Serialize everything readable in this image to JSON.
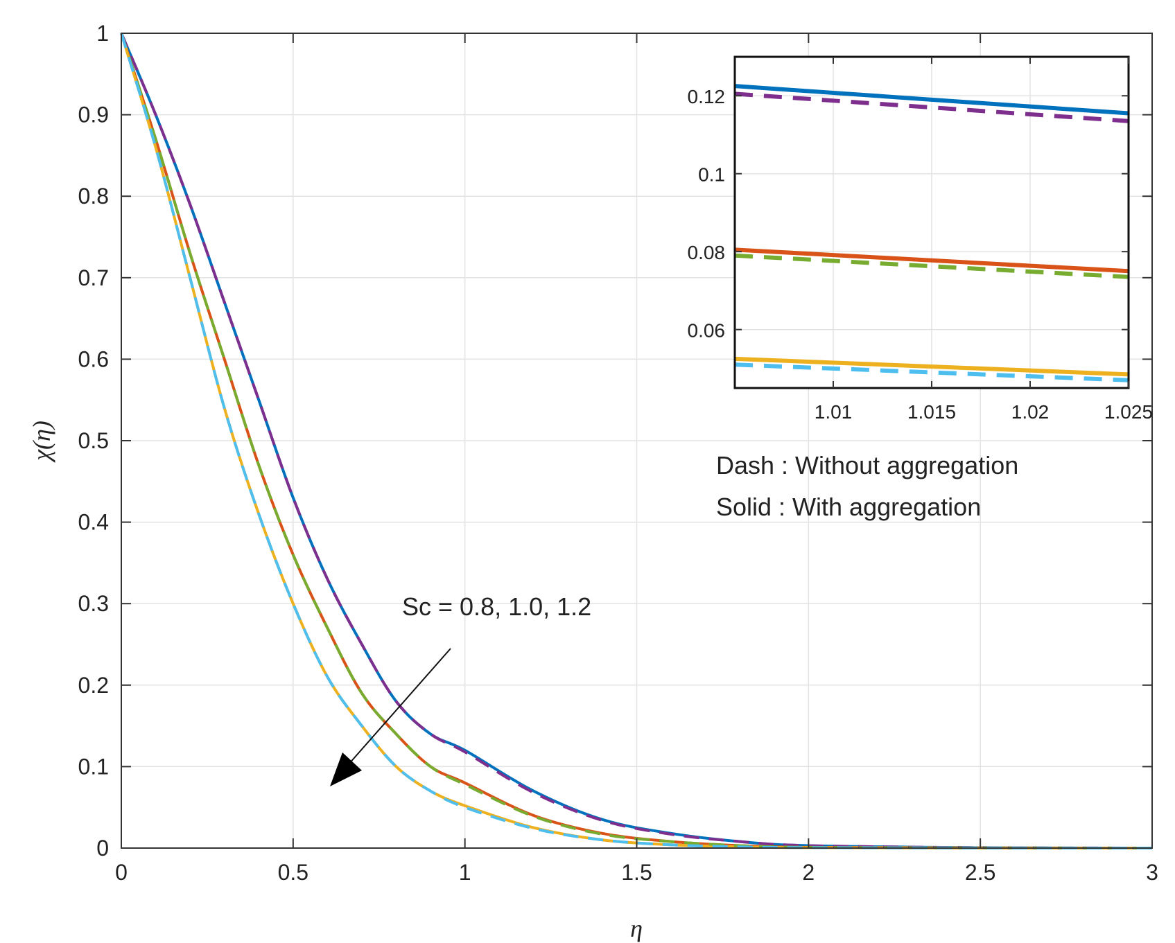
{
  "chart_data": {
    "type": "line",
    "xlabel": "η",
    "ylabel": "χ(η)",
    "xlim": [
      0,
      3
    ],
    "ylim": [
      0,
      1
    ],
    "grid": true,
    "x_ticks": [
      "0",
      "0.5",
      "1",
      "1.5",
      "2",
      "2.5",
      "3"
    ],
    "y_ticks": [
      "0",
      "0.1",
      "0.2",
      "0.3",
      "0.4",
      "0.5",
      "0.6",
      "0.7",
      "0.8",
      "0.9",
      "1"
    ],
    "series": [
      {
        "name": "Sc = 0.8, with aggregation",
        "color": "#0072BD",
        "style": "solid",
        "x": [
          0,
          0.1,
          0.2,
          0.3,
          0.4,
          0.5,
          0.6,
          0.7,
          0.8,
          0.9,
          1.0,
          1.2,
          1.4,
          1.6,
          1.8,
          2.0,
          2.5,
          3.0
        ],
        "y": [
          1.0,
          0.9,
          0.79,
          0.67,
          0.55,
          0.43,
          0.33,
          0.25,
          0.18,
          0.14,
          0.12,
          0.07,
          0.035,
          0.018,
          0.008,
          0.003,
          0.0005,
          0.0
        ]
      },
      {
        "name": "Sc = 0.8, without aggregation",
        "color": "#7E2F8E",
        "style": "dash",
        "x": [
          0,
          0.1,
          0.2,
          0.3,
          0.4,
          0.5,
          0.6,
          0.7,
          0.8,
          0.9,
          1.0,
          1.2,
          1.4,
          1.6,
          1.8,
          2.0,
          2.5,
          3.0
        ],
        "y": [
          1.0,
          0.9,
          0.79,
          0.67,
          0.55,
          0.43,
          0.33,
          0.25,
          0.18,
          0.14,
          0.118,
          0.068,
          0.034,
          0.017,
          0.008,
          0.003,
          0.0005,
          0.0
        ]
      },
      {
        "name": "Sc = 1.0, with aggregation",
        "color": "#D95319",
        "style": "solid",
        "x": [
          0,
          0.1,
          0.2,
          0.3,
          0.4,
          0.5,
          0.6,
          0.7,
          0.8,
          0.9,
          1.0,
          1.2,
          1.4,
          1.6,
          1.8,
          2.0,
          2.5,
          3.0
        ],
        "y": [
          1.0,
          0.87,
          0.73,
          0.6,
          0.47,
          0.36,
          0.27,
          0.19,
          0.14,
          0.1,
          0.08,
          0.04,
          0.018,
          0.008,
          0.003,
          0.001,
          0.0002,
          0.0
        ]
      },
      {
        "name": "Sc = 1.0, without aggregation",
        "color": "#77AC30",
        "style": "dash",
        "x": [
          0,
          0.1,
          0.2,
          0.3,
          0.4,
          0.5,
          0.6,
          0.7,
          0.8,
          0.9,
          1.0,
          1.2,
          1.4,
          1.6,
          1.8,
          2.0,
          2.5,
          3.0
        ],
        "y": [
          1.0,
          0.87,
          0.73,
          0.6,
          0.47,
          0.36,
          0.27,
          0.19,
          0.14,
          0.1,
          0.078,
          0.039,
          0.017,
          0.008,
          0.003,
          0.001,
          0.0002,
          0.0
        ]
      },
      {
        "name": "Sc = 1.2, with aggregation",
        "color": "#EDB120",
        "style": "solid",
        "x": [
          0,
          0.1,
          0.2,
          0.3,
          0.4,
          0.5,
          0.6,
          0.7,
          0.8,
          0.9,
          1.0,
          1.2,
          1.4,
          1.6,
          1.8,
          2.0,
          2.5,
          3.0
        ],
        "y": [
          1.0,
          0.86,
          0.7,
          0.54,
          0.41,
          0.3,
          0.21,
          0.15,
          0.1,
          0.07,
          0.052,
          0.025,
          0.01,
          0.004,
          0.0015,
          0.0005,
          0.0001,
          0.0
        ]
      },
      {
        "name": "Sc = 1.2, without aggregation",
        "color": "#4DBEEE",
        "style": "dash",
        "x": [
          0,
          0.1,
          0.2,
          0.3,
          0.4,
          0.5,
          0.6,
          0.7,
          0.8,
          0.9,
          1.0,
          1.2,
          1.4,
          1.6,
          1.8,
          2.0,
          2.5,
          3.0
        ],
        "y": [
          1.0,
          0.86,
          0.7,
          0.54,
          0.41,
          0.3,
          0.21,
          0.15,
          0.1,
          0.07,
          0.05,
          0.024,
          0.01,
          0.004,
          0.0015,
          0.0005,
          0.0001,
          0.0
        ]
      }
    ],
    "inset": {
      "xlim": [
        1.005,
        1.025
      ],
      "ylim": [
        0.045,
        0.13
      ],
      "x_ticks": [
        "1.01",
        "1.015",
        "1.02",
        "1.025"
      ],
      "y_ticks": [
        "0.06",
        "0.08",
        "0.1",
        "0.12"
      ],
      "series": [
        {
          "name": "Sc = 0.8, with aggregation",
          "color": "#0072BD",
          "style": "solid",
          "x": [
            1.005,
            1.025
          ],
          "y": [
            0.1225,
            0.1155
          ]
        },
        {
          "name": "Sc = 0.8, without aggregation",
          "color": "#7E2F8E",
          "style": "dash",
          "x": [
            1.005,
            1.025
          ],
          "y": [
            0.1205,
            0.1135
          ]
        },
        {
          "name": "Sc = 1.0, with aggregation",
          "color": "#D95319",
          "style": "solid",
          "x": [
            1.005,
            1.025
          ],
          "y": [
            0.0805,
            0.075
          ]
        },
        {
          "name": "Sc = 1.0, without aggregation",
          "color": "#77AC30",
          "style": "dash",
          "x": [
            1.005,
            1.025
          ],
          "y": [
            0.079,
            0.0735
          ]
        },
        {
          "name": "Sc = 1.2, with aggregation",
          "color": "#EDB120",
          "style": "solid",
          "x": [
            1.005,
            1.025
          ],
          "y": [
            0.0525,
            0.0485
          ]
        },
        {
          "name": "Sc = 1.2, without aggregation",
          "color": "#4DBEEE",
          "style": "dash",
          "x": [
            1.005,
            1.025
          ],
          "y": [
            0.051,
            0.047
          ]
        }
      ]
    },
    "annotations": {
      "sc_label": "Sc = 0.8, 1.0, 1.2",
      "dash_note": "Dash : Without aggregation",
      "solid_note": "Solid :  With aggregation"
    }
  }
}
